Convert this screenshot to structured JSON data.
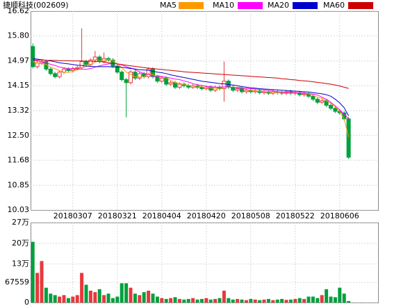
{
  "chart_data": {
    "type": "candlestick",
    "title": "捷顺科技(002609)",
    "categories": [
      null,
      null,
      null,
      null,
      null,
      null,
      null,
      null,
      null,
      "20180307",
      null,
      null,
      null,
      null,
      null,
      null,
      null,
      null,
      null,
      "20180321",
      null,
      null,
      null,
      null,
      null,
      null,
      null,
      null,
      null,
      "20180404",
      null,
      null,
      null,
      null,
      null,
      null,
      null,
      null,
      null,
      "20180420",
      null,
      null,
      null,
      null,
      null,
      null,
      null,
      null,
      null,
      "20180508",
      null,
      null,
      null,
      null,
      null,
      null,
      null,
      null,
      null,
      "20180522",
      null,
      null,
      null,
      null,
      null,
      null,
      null,
      null,
      null,
      "20180606",
      null,
      null
    ],
    "open": [
      15.45,
      14.78,
      14.9,
      14.95,
      14.7,
      14.55,
      14.45,
      14.6,
      14.7,
      14.65,
      14.72,
      14.75,
      14.95,
      14.85,
      15.0,
      15.1,
      14.95,
      15.05,
      15.0,
      14.8,
      14.6,
      14.35,
      14.25,
      14.6,
      14.4,
      14.55,
      14.45,
      14.7,
      14.45,
      14.3,
      14.4,
      14.2,
      14.25,
      14.1,
      14.2,
      14.15,
      14.1,
      14.15,
      14.1,
      14.05,
      14.1,
      14.0,
      14.1,
      14.05,
      14.3,
      14.1,
      14.0,
      14.05,
      13.95,
      14.0,
      13.95,
      13.98,
      13.92,
      13.95,
      13.9,
      13.95,
      13.92,
      13.9,
      13.95,
      13.9,
      13.92,
      13.85,
      13.88,
      13.8,
      13.7,
      13.6,
      13.65,
      13.5,
      13.4,
      13.3,
      13.25,
      13.05
    ],
    "high": [
      15.55,
      14.96,
      15.01,
      15.01,
      14.76,
      14.61,
      14.66,
      14.76,
      14.76,
      14.78,
      14.81,
      16.05,
      15.01,
      15.06,
      15.3,
      15.16,
      15.25,
      15.11,
      15.06,
      14.86,
      14.66,
      14.41,
      14.66,
      14.66,
      14.61,
      14.61,
      14.76,
      14.76,
      14.51,
      14.46,
      14.46,
      14.31,
      14.31,
      14.26,
      14.26,
      14.21,
      14.21,
      14.21,
      14.16,
      14.16,
      14.16,
      14.16,
      14.16,
      14.95,
      14.36,
      14.16,
      14.11,
      14.11,
      14.06,
      14.06,
      14.04,
      14.04,
      14.01,
      14.01,
      14.01,
      14.01,
      13.98,
      14.01,
      14.01,
      13.98,
      13.98,
      13.94,
      13.94,
      13.86,
      13.76,
      13.71,
      13.71,
      13.56,
      13.46,
      13.36,
      13.31,
      13.11
    ],
    "low": [
      14.72,
      14.72,
      14.84,
      14.64,
      14.49,
      14.39,
      14.39,
      14.54,
      14.59,
      14.59,
      14.66,
      14.69,
      14.79,
      14.79,
      14.94,
      14.89,
      14.89,
      14.94,
      14.74,
      14.54,
      14.29,
      13.1,
      14.19,
      14.34,
      14.34,
      14.39,
      14.39,
      14.39,
      14.24,
      14.24,
      14.14,
      14.14,
      14.04,
      14.04,
      14.09,
      14.04,
      14.04,
      14.04,
      13.99,
      13.99,
      13.94,
      13.94,
      13.99,
      13.62,
      14.04,
      13.94,
      13.94,
      13.89,
      13.89,
      13.89,
      13.89,
      13.86,
      13.86,
      13.84,
      13.84,
      13.86,
      13.84,
      13.84,
      13.84,
      13.84,
      13.79,
      13.79,
      13.74,
      13.64,
      13.54,
      13.54,
      13.44,
      13.34,
      13.24,
      13.19,
      12.99,
      11.72
    ],
    "close": [
      14.78,
      14.9,
      14.95,
      14.7,
      14.55,
      14.45,
      14.6,
      14.7,
      14.65,
      14.72,
      14.75,
      14.95,
      14.85,
      15.0,
      15.1,
      14.95,
      15.05,
      15.0,
      14.8,
      14.6,
      14.35,
      14.25,
      14.6,
      14.4,
      14.55,
      14.45,
      14.7,
      14.45,
      14.3,
      14.4,
      14.2,
      14.25,
      14.1,
      14.2,
      14.15,
      14.1,
      14.15,
      14.1,
      14.05,
      14.1,
      14.0,
      14.1,
      14.05,
      14.3,
      14.1,
      14.0,
      14.05,
      13.95,
      14.0,
      13.95,
      13.98,
      13.92,
      13.95,
      13.9,
      13.95,
      13.92,
      13.9,
      13.95,
      13.9,
      13.92,
      13.85,
      13.88,
      13.8,
      13.7,
      13.6,
      13.65,
      13.5,
      13.4,
      13.3,
      13.25,
      13.05,
      11.78
    ],
    "up_color": "#e8383d",
    "down_color": "#00a03c",
    "series": [
      {
        "name": "MA5",
        "color": "#ff9900",
        "values": [
          14.95,
          14.9,
          14.88,
          14.85,
          14.76,
          14.71,
          14.65,
          14.6,
          14.59,
          14.62,
          14.68,
          14.75,
          14.78,
          14.85,
          14.93,
          14.97,
          14.99,
          15.02,
          14.98,
          14.88,
          14.75,
          14.6,
          14.52,
          14.44,
          14.43,
          14.45,
          14.55,
          14.51,
          14.49,
          14.46,
          14.41,
          14.32,
          14.25,
          14.23,
          14.18,
          14.16,
          14.14,
          14.14,
          14.11,
          14.09,
          14.08,
          14.06,
          14.06,
          14.09,
          14.11,
          14.09,
          14.1,
          14.09,
          14.02,
          13.99,
          13.99,
          13.96,
          13.96,
          13.94,
          13.94,
          13.93,
          13.92,
          13.92,
          13.92,
          13.92,
          13.91,
          13.9,
          13.87,
          13.83,
          13.77,
          13.73,
          13.65,
          13.57,
          13.45,
          13.3,
          13.05,
          12.45
        ]
      },
      {
        "name": "MA10",
        "color": "#ff00ff",
        "values": [
          15.0,
          14.97,
          14.94,
          14.9,
          14.86,
          14.82,
          14.77,
          14.74,
          14.72,
          14.7,
          14.69,
          14.7,
          14.69,
          14.72,
          14.76,
          14.81,
          14.84,
          14.87,
          14.88,
          14.87,
          14.84,
          14.78,
          14.74,
          14.68,
          14.61,
          14.55,
          14.52,
          14.47,
          14.46,
          14.45,
          14.43,
          14.4,
          14.37,
          14.35,
          14.31,
          14.27,
          14.22,
          14.18,
          14.16,
          14.13,
          14.12,
          14.1,
          14.1,
          14.11,
          14.11,
          14.09,
          14.08,
          14.07,
          14.06,
          14.05,
          14.04,
          14.02,
          14.01,
          13.99,
          13.98,
          13.95,
          13.94,
          13.93,
          13.93,
          13.93,
          13.91,
          13.91,
          13.89,
          13.87,
          13.84,
          13.77,
          13.7,
          13.6,
          13.48,
          13.35,
          13.2,
          13.05
        ]
      },
      {
        "name": "MA20",
        "color": "#0000cc",
        "values": [
          15.05,
          15.03,
          15.01,
          14.99,
          14.97,
          14.94,
          14.91,
          14.89,
          14.87,
          14.85,
          14.83,
          14.82,
          14.8,
          14.79,
          14.78,
          14.78,
          14.78,
          14.78,
          14.77,
          14.77,
          14.76,
          14.74,
          14.72,
          14.7,
          14.68,
          14.67,
          14.66,
          14.63,
          14.6,
          14.58,
          14.55,
          14.51,
          14.48,
          14.45,
          14.42,
          14.39,
          14.36,
          14.33,
          14.3,
          14.28,
          14.26,
          14.24,
          14.22,
          14.21,
          14.19,
          14.17,
          14.15,
          14.12,
          14.1,
          14.08,
          14.07,
          14.05,
          14.04,
          14.03,
          14.02,
          14.01,
          14.0,
          13.99,
          13.98,
          13.97,
          13.96,
          13.95,
          13.94,
          13.92,
          13.9,
          13.88,
          13.85,
          13.8,
          13.7,
          13.58,
          13.42,
          13.15
        ]
      },
      {
        "name": "MA60",
        "color": "#cc0000",
        "values": [
          15.0,
          15.0,
          15.0,
          14.99,
          14.99,
          14.99,
          14.98,
          14.98,
          14.98,
          14.97,
          14.97,
          14.97,
          14.96,
          14.96,
          14.95,
          14.95,
          14.93,
          14.91,
          14.89,
          14.87,
          14.85,
          14.83,
          14.81,
          14.79,
          14.77,
          14.75,
          14.73,
          14.72,
          14.7,
          14.69,
          14.67,
          14.66,
          14.64,
          14.63,
          14.61,
          14.6,
          14.59,
          14.58,
          14.57,
          14.56,
          14.55,
          14.54,
          14.53,
          14.52,
          14.51,
          14.5,
          14.49,
          14.48,
          14.47,
          14.46,
          14.45,
          14.44,
          14.43,
          14.42,
          14.41,
          14.4,
          14.38,
          14.37,
          14.35,
          14.34,
          14.32,
          14.31,
          14.3,
          14.28,
          14.26,
          14.24,
          14.22,
          14.2,
          14.17,
          14.14,
          14.1,
          14.06
        ]
      }
    ],
    "ylim": [
      10.03,
      16.62
    ],
    "yticks": [
      {
        "value": 16.62,
        "label": "16.62"
      },
      {
        "value": 15.8,
        "label": "15.80"
      },
      {
        "value": 14.97,
        "label": "14.97"
      },
      {
        "value": 14.15,
        "label": "14.15"
      },
      {
        "value": 13.32,
        "label": "13.32"
      },
      {
        "value": 12.5,
        "label": "12.50"
      },
      {
        "value": 11.68,
        "label": "11.68"
      },
      {
        "value": 10.85,
        "label": "10.85"
      },
      {
        "value": 10.03,
        "label": "10.03"
      }
    ],
    "grid": true,
    "volume": {
      "values": [
        205000,
        100000,
        140000,
        50000,
        30000,
        25000,
        20000,
        25000,
        15000,
        20000,
        25000,
        100000,
        60000,
        40000,
        35000,
        45000,
        25000,
        30000,
        15000,
        20000,
        65000,
        65000,
        50000,
        30000,
        25000,
        35000,
        40000,
        30000,
        20000,
        15000,
        12000,
        15000,
        18000,
        12000,
        10000,
        12000,
        15000,
        10000,
        12000,
        15000,
        10000,
        12000,
        15000,
        40000,
        15000,
        10000,
        12000,
        10000,
        8000,
        12000,
        10000,
        8000,
        10000,
        12000,
        8000,
        10000,
        12000,
        9000,
        10000,
        12000,
        15000,
        12000,
        20000,
        20000,
        15000,
        25000,
        45000,
        20000,
        18000,
        50000,
        30000,
        5000
      ],
      "ylim": [
        0,
        270000
      ],
      "yticks": [
        {
          "value": 270000,
          "label": "27万"
        },
        {
          "value": 200000,
          "label": "20万"
        },
        {
          "value": 130000,
          "label": "13万"
        },
        67559,
        0
      ]
    }
  }
}
